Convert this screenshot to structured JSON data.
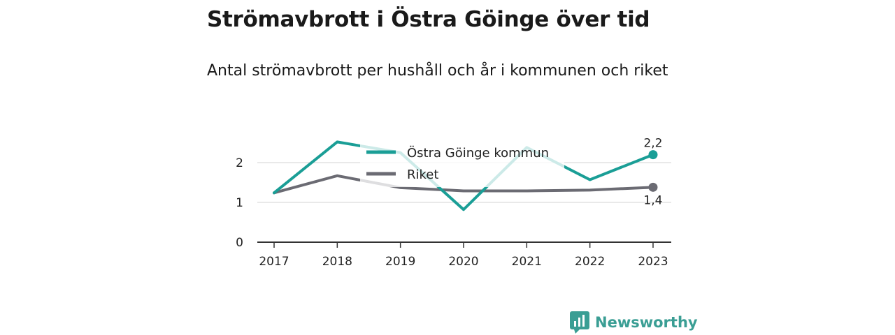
{
  "title": "Strömavbrott i Östra Göinge över tid",
  "subtitle": "Antal strömavbrott per hushåll och år i kommunen och riket",
  "brand": {
    "name": "Newsworthy",
    "logo_icon": "bar-chart-speech-bubble-icon",
    "color": "#3a9e94"
  },
  "chart_data": {
    "type": "line",
    "title": "Strömavbrott i Östra Göinge över tid",
    "subtitle": "Antal strömavbrott per hushåll och år i kommunen och riket",
    "xlabel": "",
    "ylabel": "",
    "x": [
      "2017",
      "2018",
      "2019",
      "2020",
      "2021",
      "2022",
      "2023"
    ],
    "ylim": [
      0,
      2.6
    ],
    "yticks": [
      0,
      1,
      2
    ],
    "grid": true,
    "legend": "top-center",
    "series": [
      {
        "name": "Östra Göinge kommun",
        "color": "#1a9e96",
        "values": [
          1.24,
          2.52,
          2.25,
          0.82,
          2.38,
          1.57,
          2.2
        ],
        "end_label": "2,2"
      },
      {
        "name": "Riket",
        "color": "#6b6b73",
        "values": [
          1.24,
          1.67,
          1.37,
          1.29,
          1.29,
          1.31,
          1.38
        ],
        "end_label": "1,4"
      }
    ]
  }
}
